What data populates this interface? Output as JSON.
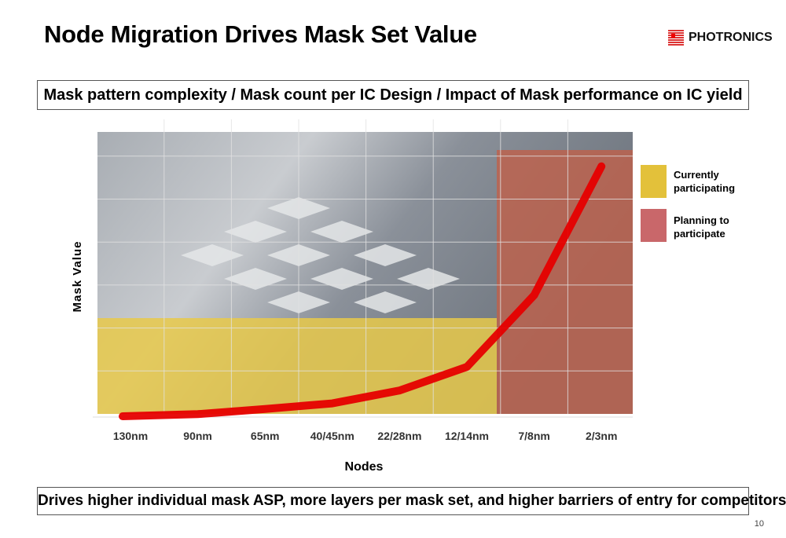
{
  "header": {
    "title": "Node Migration Drives Mask Set Value",
    "logo_text": "PHOTRONICS"
  },
  "top_banner": "Mask pattern complexity  /  Mask count per IC Design  /  Impact of Mask performance on IC yield",
  "bottom_banner": "Drives higher individual mask ASP, more layers per mask set, and higher barriers of entry for competitors",
  "page_number": "10",
  "colors": {
    "line": "#e60000",
    "current": "#e8c94a",
    "planning": "#c0604a"
  },
  "chart_data": {
    "type": "line",
    "title": "",
    "xlabel": "Nodes",
    "ylabel": "Mask Value",
    "categories": [
      "130nm",
      "90nm",
      "65nm",
      "40/45nm",
      "22/28nm",
      "12/14nm",
      "7/8nm",
      "2/3nm"
    ],
    "series": [
      {
        "name": "Mask Value",
        "values": [
          0,
          0.05,
          0.17,
          0.3,
          0.6,
          1.15,
          2.82,
          5.82
        ]
      }
    ],
    "ylim": [
      0,
      6.5
    ],
    "grid": true,
    "regions": [
      {
        "label": "Currently participating",
        "from": "130nm",
        "to": "12/14nm",
        "color": "#e8c94a"
      },
      {
        "label": "Planning to participate",
        "from": "7/8nm",
        "to": "2/3nm",
        "color": "#c0604a"
      }
    ],
    "legend_position": "right"
  },
  "legend": [
    {
      "label_line1": "Currently",
      "label_line2": "participating"
    },
    {
      "label_line1": "Planning to",
      "label_line2": "participate"
    }
  ]
}
